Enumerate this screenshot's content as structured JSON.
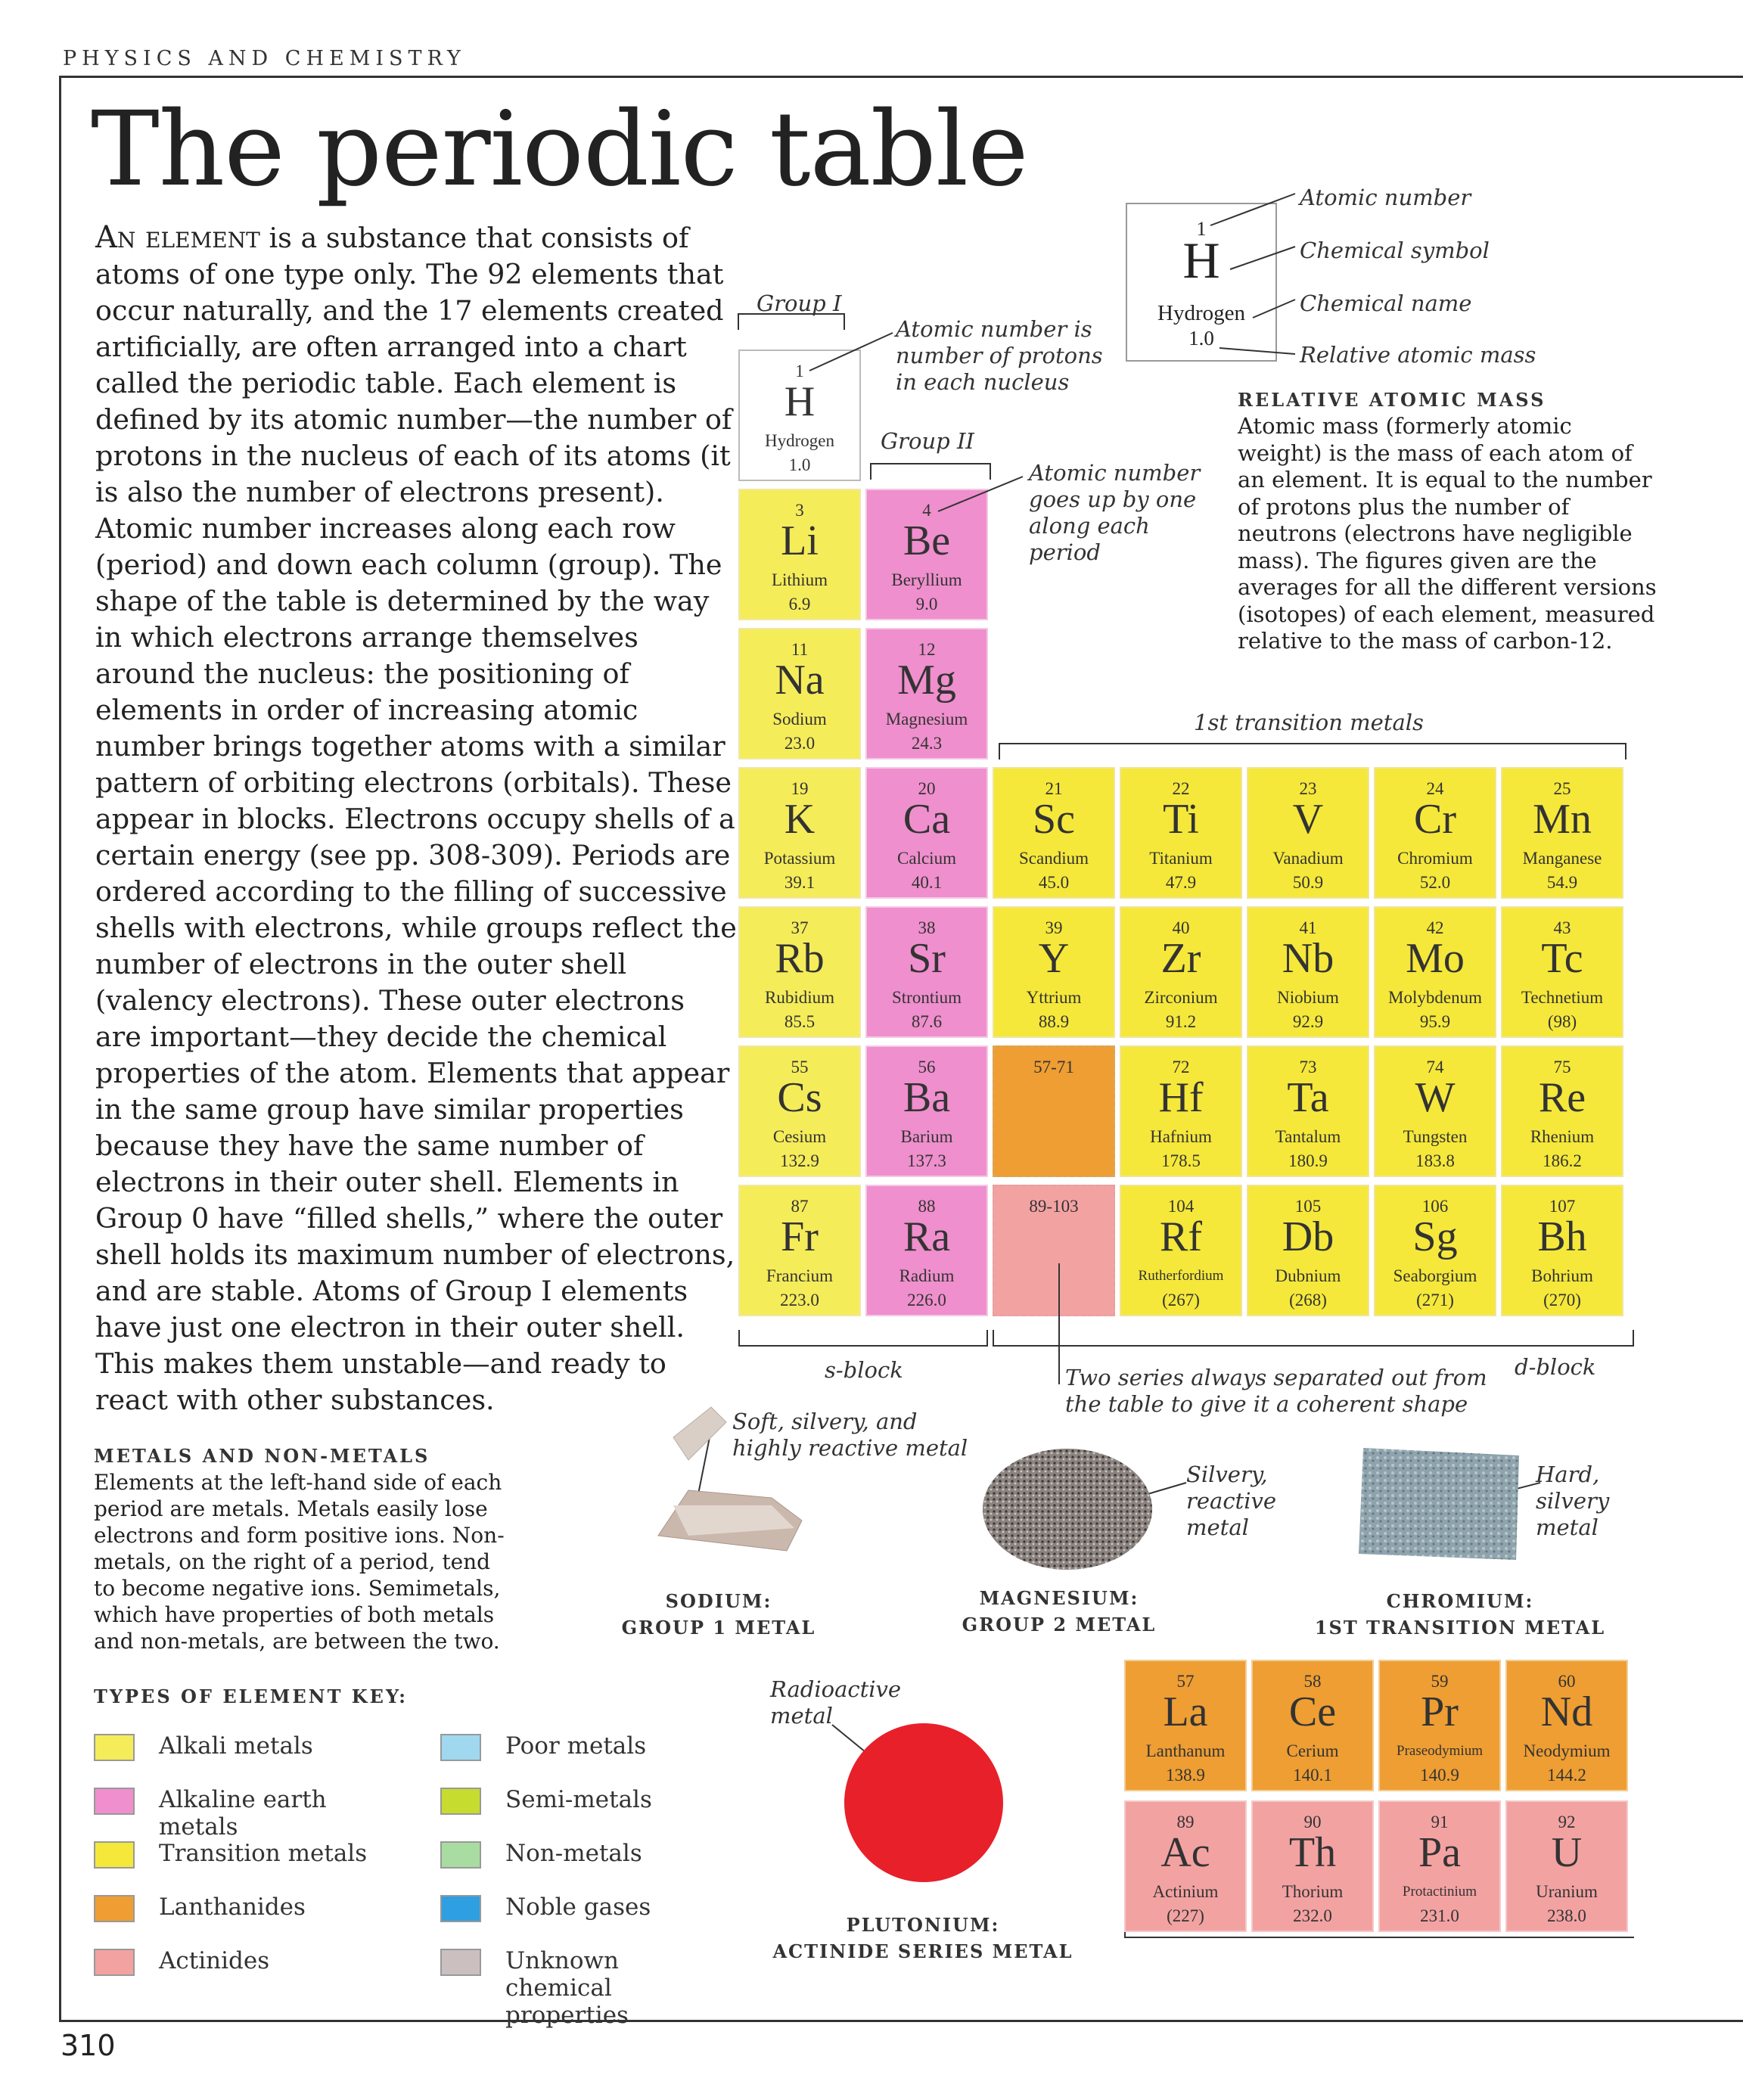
{
  "header": {
    "section": "PHYSICS AND CHEMISTRY",
    "title": "The periodic table",
    "page_number": "310"
  },
  "intro": {
    "lead": "An element",
    "body": "is a substance that consists of atoms of one type only. The 92 elements that occur naturally, and the 17 elements created artificially, are often arranged into a chart called the periodic table. Each element is defined by its atomic number—the number of protons in the nucleus of each of its atoms (it is also the number of electrons present). Atomic number increases along each row (period) and down each column (group). The shape of the table is determined by the way in which electrons arrange themselves around the nucleus: the positioning of elements in order of increasing atomic number brings together atoms with a similar pattern of orbiting electrons (orbitals). These appear in blocks. Electrons occupy shells of a certain energy (see pp. 308-309). Periods are ordered according to the filling of successive shells with electrons, while groups reflect the number of electrons in the outer shell (valency electrons). These outer electrons are important—they decide the chemical properties of the atom. Elements that appear in the same group have similar properties because they have the same number of electrons in their outer shell. Elements in Group 0 have “filled shells,” where the outer shell holds its maximum number of electrons, and are stable. Atoms of Group I elements have just one electron in their outer shell. This makes them unstable—and ready to react with other substances."
  },
  "metals_box": {
    "heading": "METALS AND NON-METALS",
    "text": "Elements at the left-hand side of each period are metals. Metals easily lose electrons and form positive ions. Non-metals, on the right of a period, tend to become negative ions. Semimetals, which have properties of both metals and non-metals, are between the two."
  },
  "key": {
    "heading": "TYPES OF ELEMENT KEY:",
    "items": [
      {
        "label": "Alkali metals",
        "color": "#f5ec5a"
      },
      {
        "label": "Alkaline earth metals",
        "color": "#ef8fcd"
      },
      {
        "label": "Transition metals",
        "color": "#f5e83a"
      },
      {
        "label": "Lanthanides",
        "color": "#ee9e33"
      },
      {
        "label": "Actinides",
        "color": "#f3a2a2"
      },
      {
        "label": "Poor metals",
        "color": "#9fd8ef"
      },
      {
        "label": "Semi-metals",
        "color": "#c6dc2e"
      },
      {
        "label": "Non-metals",
        "color": "#a8dca0"
      },
      {
        "label": "Noble gases",
        "color": "#2e9fe0"
      },
      {
        "label": "Unknown chemical properties",
        "color": "#cbbfbf"
      }
    ]
  },
  "legend_box": {
    "number": "1",
    "symbol": "H",
    "name": "Hydrogen",
    "mass": "1.0",
    "labels": [
      "Atomic number",
      "Chemical symbol",
      "Chemical name",
      "Relative atomic mass"
    ]
  },
  "relative_mass": {
    "heading": "RELATIVE ATOMIC MASS",
    "text": "Atomic mass (formerly atomic weight) is the mass of each atom of an element. It is equal to the number of protons plus the number of neutrons (electrons have negligible mass). The figures given are the averages for all the different versions (isotopes) of each element, measured relative to the mass of carbon-12."
  },
  "annotations": {
    "group1": "Group I",
    "group2": "Group II",
    "atomic_number_is": "Atomic number is number of protons in each nucleus",
    "atomic_number_goes": "Atomic number goes up by one along each period",
    "transition": "1st transition metals",
    "s_block": "s-block",
    "d_block": "d-block",
    "two_series": "Two series always separated out from the table to give it a coherent shape"
  },
  "elements": [
    {
      "n": "1",
      "s": "H",
      "name": "Hydrogen",
      "m": "1.0",
      "type": "hydrogen"
    },
    {
      "n": "3",
      "s": "Li",
      "name": "Lithium",
      "m": "6.9",
      "type": "alkali"
    },
    {
      "n": "4",
      "s": "Be",
      "name": "Beryllium",
      "m": "9.0",
      "type": "alkaline"
    },
    {
      "n": "11",
      "s": "Na",
      "name": "Sodium",
      "m": "23.0",
      "type": "alkali"
    },
    {
      "n": "12",
      "s": "Mg",
      "name": "Magnesium",
      "m": "24.3",
      "type": "alkaline"
    },
    {
      "n": "19",
      "s": "K",
      "name": "Potassium",
      "m": "39.1",
      "type": "alkali"
    },
    {
      "n": "20",
      "s": "Ca",
      "name": "Calcium",
      "m": "40.1",
      "type": "alkaline"
    },
    {
      "n": "21",
      "s": "Sc",
      "name": "Scandium",
      "m": "45.0",
      "type": "transition"
    },
    {
      "n": "22",
      "s": "Ti",
      "name": "Titanium",
      "m": "47.9",
      "type": "transition"
    },
    {
      "n": "23",
      "s": "V",
      "name": "Vanadium",
      "m": "50.9",
      "type": "transition"
    },
    {
      "n": "24",
      "s": "Cr",
      "name": "Chromium",
      "m": "52.0",
      "type": "transition"
    },
    {
      "n": "25",
      "s": "Mn",
      "name": "Manganese",
      "m": "54.9",
      "type": "transition"
    },
    {
      "n": "37",
      "s": "Rb",
      "name": "Rubidium",
      "m": "85.5",
      "type": "alkali"
    },
    {
      "n": "38",
      "s": "Sr",
      "name": "Strontium",
      "m": "87.6",
      "type": "alkaline"
    },
    {
      "n": "39",
      "s": "Y",
      "name": "Yttrium",
      "m": "88.9",
      "type": "transition"
    },
    {
      "n": "40",
      "s": "Zr",
      "name": "Zirconium",
      "m": "91.2",
      "type": "transition"
    },
    {
      "n": "41",
      "s": "Nb",
      "name": "Niobium",
      "m": "92.9",
      "type": "transition"
    },
    {
      "n": "42",
      "s": "Mo",
      "name": "Molybdenum",
      "m": "95.9",
      "type": "transition"
    },
    {
      "n": "43",
      "s": "Tc",
      "name": "Technetium",
      "m": "(98)",
      "type": "transition"
    },
    {
      "n": "55",
      "s": "Cs",
      "name": "Cesium",
      "m": "132.9",
      "type": "alkali"
    },
    {
      "n": "56",
      "s": "Ba",
      "name": "Barium",
      "m": "137.3",
      "type": "alkaline"
    },
    {
      "n": "57-71",
      "s": "",
      "name": "",
      "m": "",
      "type": "lanth"
    },
    {
      "n": "72",
      "s": "Hf",
      "name": "Hafnium",
      "m": "178.5",
      "type": "transition"
    },
    {
      "n": "73",
      "s": "Ta",
      "name": "Tantalum",
      "m": "180.9",
      "type": "transition"
    },
    {
      "n": "74",
      "s": "W",
      "name": "Tungsten",
      "m": "183.8",
      "type": "transition"
    },
    {
      "n": "75",
      "s": "Re",
      "name": "Rhenium",
      "m": "186.2",
      "type": "transition"
    },
    {
      "n": "87",
      "s": "Fr",
      "name": "Francium",
      "m": "223.0",
      "type": "alkali"
    },
    {
      "n": "88",
      "s": "Ra",
      "name": "Radium",
      "m": "226.0",
      "type": "alkaline"
    },
    {
      "n": "89-103",
      "s": "",
      "name": "",
      "m": "",
      "type": "actin"
    },
    {
      "n": "104",
      "s": "Rf",
      "name": "Rutherfordium",
      "m": "(267)",
      "type": "transition"
    },
    {
      "n": "105",
      "s": "Db",
      "name": "Dubnium",
      "m": "(268)",
      "type": "transition"
    },
    {
      "n": "106",
      "s": "Sg",
      "name": "Seaborgium",
      "m": "(271)",
      "type": "transition"
    },
    {
      "n": "107",
      "s": "Bh",
      "name": "Bohrium",
      "m": "(270)",
      "type": "transition"
    },
    {
      "n": "57",
      "s": "La",
      "name": "Lanthanum",
      "m": "138.9",
      "type": "lanth"
    },
    {
      "n": "58",
      "s": "Ce",
      "name": "Cerium",
      "m": "140.1",
      "type": "lanth"
    },
    {
      "n": "59",
      "s": "Pr",
      "name": "Praseodymium",
      "m": "140.9",
      "type": "lanth"
    },
    {
      "n": "60",
      "s": "Nd",
      "name": "Neodymium",
      "m": "144.2",
      "type": "lanth"
    },
    {
      "n": "89",
      "s": "Ac",
      "name": "Actinium",
      "m": "(227)",
      "type": "actin"
    },
    {
      "n": "90",
      "s": "Th",
      "name": "Thorium",
      "m": "232.0",
      "type": "actin"
    },
    {
      "n": "91",
      "s": "Pa",
      "name": "Protactinium",
      "m": "231.0",
      "type": "actin"
    },
    {
      "n": "92",
      "s": "U",
      "name": "Uranium",
      "m": "238.0",
      "type": "actin"
    }
  ],
  "samples": {
    "sodium": {
      "label1": "SODIUM:",
      "label2": "GROUP 1 METAL",
      "note": "Soft, silvery, and highly reactive metal"
    },
    "magnesium": {
      "label1": "MAGNESIUM:",
      "label2": "GROUP 2 METAL",
      "note": "Silvery, reactive metal"
    },
    "chromium": {
      "label1": "CHROMIUM:",
      "label2": "1ST TRANSITION METAL",
      "note": "Hard, silvery metal"
    },
    "plutonium": {
      "label1": "PLUTONIUM:",
      "label2": "ACTINIDE SERIES METAL",
      "note": "Radioactive metal"
    }
  }
}
